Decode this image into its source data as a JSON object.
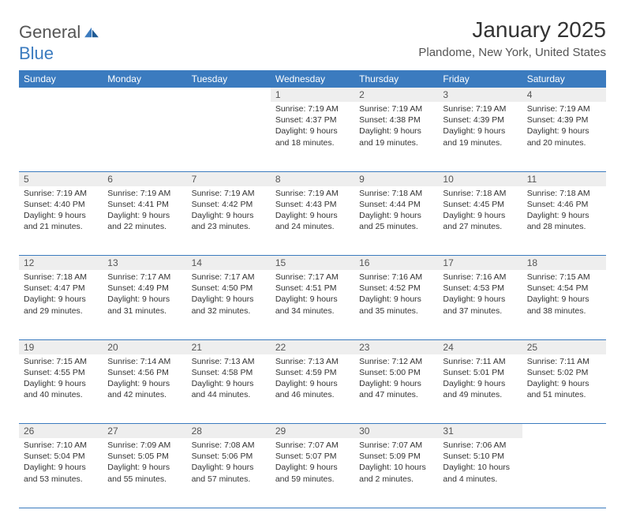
{
  "brand": {
    "part1": "General",
    "part2": "Blue"
  },
  "title": "January 2025",
  "location": "Plandome, New York, United States",
  "colors": {
    "header_bg": "#3b7bbf",
    "header_text": "#ffffff",
    "daynum_bg": "#eeeeee",
    "border": "#3b7bbf",
    "body_text": "#333333",
    "logo_gray": "#555555",
    "logo_blue": "#3b7bbf"
  },
  "weekdays": [
    "Sunday",
    "Monday",
    "Tuesday",
    "Wednesday",
    "Thursday",
    "Friday",
    "Saturday"
  ],
  "weeks": [
    [
      {
        "day": "",
        "lines": []
      },
      {
        "day": "",
        "lines": []
      },
      {
        "day": "",
        "lines": []
      },
      {
        "day": "1",
        "lines": [
          "Sunrise: 7:19 AM",
          "Sunset: 4:37 PM",
          "Daylight: 9 hours",
          "and 18 minutes."
        ]
      },
      {
        "day": "2",
        "lines": [
          "Sunrise: 7:19 AM",
          "Sunset: 4:38 PM",
          "Daylight: 9 hours",
          "and 19 minutes."
        ]
      },
      {
        "day": "3",
        "lines": [
          "Sunrise: 7:19 AM",
          "Sunset: 4:39 PM",
          "Daylight: 9 hours",
          "and 19 minutes."
        ]
      },
      {
        "day": "4",
        "lines": [
          "Sunrise: 7:19 AM",
          "Sunset: 4:39 PM",
          "Daylight: 9 hours",
          "and 20 minutes."
        ]
      }
    ],
    [
      {
        "day": "5",
        "lines": [
          "Sunrise: 7:19 AM",
          "Sunset: 4:40 PM",
          "Daylight: 9 hours",
          "and 21 minutes."
        ]
      },
      {
        "day": "6",
        "lines": [
          "Sunrise: 7:19 AM",
          "Sunset: 4:41 PM",
          "Daylight: 9 hours",
          "and 22 minutes."
        ]
      },
      {
        "day": "7",
        "lines": [
          "Sunrise: 7:19 AM",
          "Sunset: 4:42 PM",
          "Daylight: 9 hours",
          "and 23 minutes."
        ]
      },
      {
        "day": "8",
        "lines": [
          "Sunrise: 7:19 AM",
          "Sunset: 4:43 PM",
          "Daylight: 9 hours",
          "and 24 minutes."
        ]
      },
      {
        "day": "9",
        "lines": [
          "Sunrise: 7:18 AM",
          "Sunset: 4:44 PM",
          "Daylight: 9 hours",
          "and 25 minutes."
        ]
      },
      {
        "day": "10",
        "lines": [
          "Sunrise: 7:18 AM",
          "Sunset: 4:45 PM",
          "Daylight: 9 hours",
          "and 27 minutes."
        ]
      },
      {
        "day": "11",
        "lines": [
          "Sunrise: 7:18 AM",
          "Sunset: 4:46 PM",
          "Daylight: 9 hours",
          "and 28 minutes."
        ]
      }
    ],
    [
      {
        "day": "12",
        "lines": [
          "Sunrise: 7:18 AM",
          "Sunset: 4:47 PM",
          "Daylight: 9 hours",
          "and 29 minutes."
        ]
      },
      {
        "day": "13",
        "lines": [
          "Sunrise: 7:17 AM",
          "Sunset: 4:49 PM",
          "Daylight: 9 hours",
          "and 31 minutes."
        ]
      },
      {
        "day": "14",
        "lines": [
          "Sunrise: 7:17 AM",
          "Sunset: 4:50 PM",
          "Daylight: 9 hours",
          "and 32 minutes."
        ]
      },
      {
        "day": "15",
        "lines": [
          "Sunrise: 7:17 AM",
          "Sunset: 4:51 PM",
          "Daylight: 9 hours",
          "and 34 minutes."
        ]
      },
      {
        "day": "16",
        "lines": [
          "Sunrise: 7:16 AM",
          "Sunset: 4:52 PM",
          "Daylight: 9 hours",
          "and 35 minutes."
        ]
      },
      {
        "day": "17",
        "lines": [
          "Sunrise: 7:16 AM",
          "Sunset: 4:53 PM",
          "Daylight: 9 hours",
          "and 37 minutes."
        ]
      },
      {
        "day": "18",
        "lines": [
          "Sunrise: 7:15 AM",
          "Sunset: 4:54 PM",
          "Daylight: 9 hours",
          "and 38 minutes."
        ]
      }
    ],
    [
      {
        "day": "19",
        "lines": [
          "Sunrise: 7:15 AM",
          "Sunset: 4:55 PM",
          "Daylight: 9 hours",
          "and 40 minutes."
        ]
      },
      {
        "day": "20",
        "lines": [
          "Sunrise: 7:14 AM",
          "Sunset: 4:56 PM",
          "Daylight: 9 hours",
          "and 42 minutes."
        ]
      },
      {
        "day": "21",
        "lines": [
          "Sunrise: 7:13 AM",
          "Sunset: 4:58 PM",
          "Daylight: 9 hours",
          "and 44 minutes."
        ]
      },
      {
        "day": "22",
        "lines": [
          "Sunrise: 7:13 AM",
          "Sunset: 4:59 PM",
          "Daylight: 9 hours",
          "and 46 minutes."
        ]
      },
      {
        "day": "23",
        "lines": [
          "Sunrise: 7:12 AM",
          "Sunset: 5:00 PM",
          "Daylight: 9 hours",
          "and 47 minutes."
        ]
      },
      {
        "day": "24",
        "lines": [
          "Sunrise: 7:11 AM",
          "Sunset: 5:01 PM",
          "Daylight: 9 hours",
          "and 49 minutes."
        ]
      },
      {
        "day": "25",
        "lines": [
          "Sunrise: 7:11 AM",
          "Sunset: 5:02 PM",
          "Daylight: 9 hours",
          "and 51 minutes."
        ]
      }
    ],
    [
      {
        "day": "26",
        "lines": [
          "Sunrise: 7:10 AM",
          "Sunset: 5:04 PM",
          "Daylight: 9 hours",
          "and 53 minutes."
        ]
      },
      {
        "day": "27",
        "lines": [
          "Sunrise: 7:09 AM",
          "Sunset: 5:05 PM",
          "Daylight: 9 hours",
          "and 55 minutes."
        ]
      },
      {
        "day": "28",
        "lines": [
          "Sunrise: 7:08 AM",
          "Sunset: 5:06 PM",
          "Daylight: 9 hours",
          "and 57 minutes."
        ]
      },
      {
        "day": "29",
        "lines": [
          "Sunrise: 7:07 AM",
          "Sunset: 5:07 PM",
          "Daylight: 9 hours",
          "and 59 minutes."
        ]
      },
      {
        "day": "30",
        "lines": [
          "Sunrise: 7:07 AM",
          "Sunset: 5:09 PM",
          "Daylight: 10 hours",
          "and 2 minutes."
        ]
      },
      {
        "day": "31",
        "lines": [
          "Sunrise: 7:06 AM",
          "Sunset: 5:10 PM",
          "Daylight: 10 hours",
          "and 4 minutes."
        ]
      },
      {
        "day": "",
        "lines": []
      }
    ]
  ]
}
